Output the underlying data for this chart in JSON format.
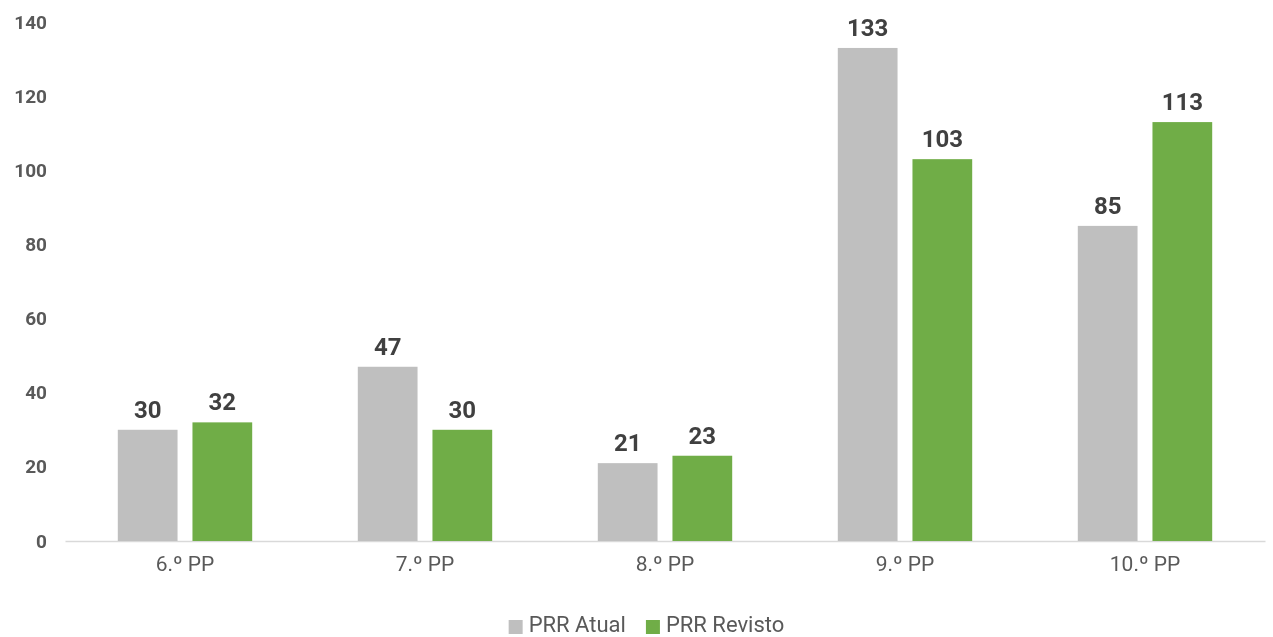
{
  "chart_data": {
    "type": "bar",
    "categories": [
      "6.º PP",
      "7.º PP",
      "8.º PP",
      "9.º PP",
      "10.º PP"
    ],
    "series": [
      {
        "name": "PRR Atual",
        "color": "#bfbfbf",
        "values": [
          30,
          47,
          21,
          133,
          85
        ]
      },
      {
        "name": "PRR Revisto",
        "color": "#70ad47",
        "values": [
          32,
          30,
          23,
          103,
          113
        ]
      }
    ],
    "ylim": [
      0,
      140
    ],
    "yticks": [
      0,
      20,
      40,
      60,
      80,
      100,
      120,
      140
    ],
    "data_labels": true,
    "legend": "bottom",
    "grid": false
  }
}
